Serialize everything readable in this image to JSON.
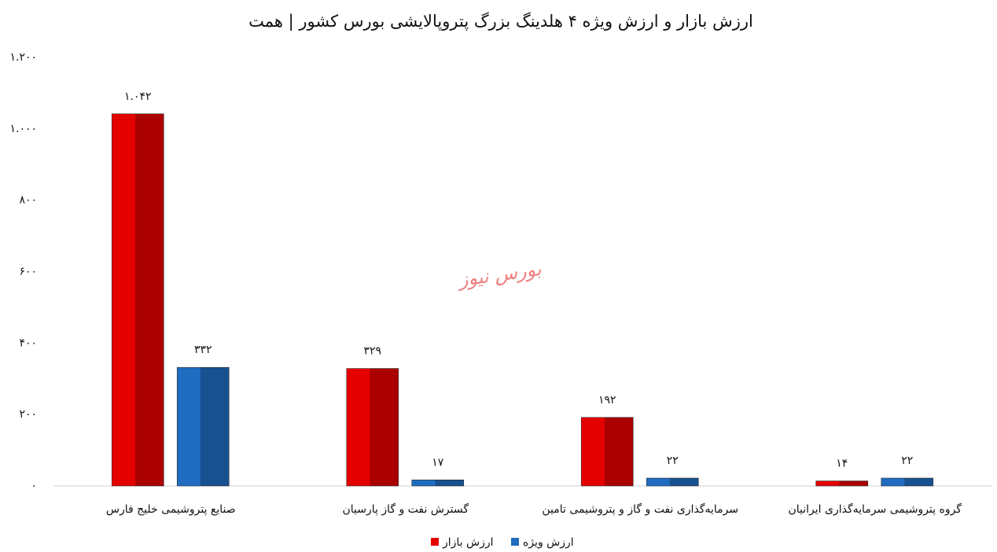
{
  "chart_data": {
    "type": "bar",
    "title": "ارزش بازار و ارزش ویژه ۴ هلدینگ بزرگ پتروپالایشی بورس کشور | همت",
    "watermark": "بورس نیوز",
    "categories": [
      "صنایع پتروشیمی خلیج فارس",
      "گسترش نفت و گاز پارسیان",
      "سرمایه‌گذاری نفت و گاز و پتروشیمی تامین",
      "گروه پتروشیمی سرمایه‌گذاری ایرانیان"
    ],
    "series": [
      {
        "name": "ارزش بازار",
        "color": "#e50000",
        "values": [
          1042,
          329,
          192,
          14
        ],
        "value_labels": [
          "۱.۰۴۲",
          "۳۲۹",
          "۱۹۲",
          "۱۴"
        ]
      },
      {
        "name": "ارزش ویژه",
        "color": "#1f6cc0",
        "values": [
          332,
          17,
          22,
          22
        ],
        "value_labels": [
          "۳۳۲",
          "۱۷",
          "۲۲",
          "۲۲"
        ]
      }
    ],
    "ylim": [
      0,
      1200
    ],
    "yticks": [
      {
        "value": 0,
        "label": "۰"
      },
      {
        "value": 200,
        "label": "۲۰۰"
      },
      {
        "value": 400,
        "label": "۴۰۰"
      },
      {
        "value": 600,
        "label": "۶۰۰"
      },
      {
        "value": 800,
        "label": "۸۰۰"
      },
      {
        "value": 1000,
        "label": "۱.۰۰۰"
      },
      {
        "value": 1200,
        "label": "۱.۲۰۰"
      }
    ],
    "grid": false,
    "legend": "bottom"
  }
}
